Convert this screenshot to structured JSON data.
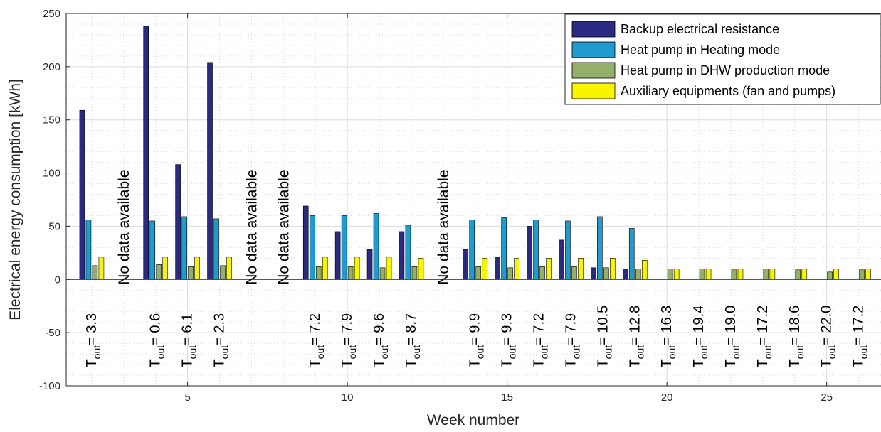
{
  "chart_data": {
    "type": "bar",
    "xlabel": "Week number",
    "ylabel": "Electrical energy consumption [kWh]",
    "xlim": [
      1.2,
      26.7
    ],
    "ylim": [
      -100,
      250
    ],
    "xticks": [
      5,
      10,
      15,
      20,
      25
    ],
    "xtick_labels": [
      "5",
      "10",
      "15",
      "20",
      "25"
    ],
    "yticks": [
      -100,
      -50,
      0,
      50,
      100,
      150,
      200,
      250
    ],
    "ytick_labels": [
      "-100",
      "-50",
      "0",
      "50",
      "100",
      "150",
      "200",
      "250"
    ],
    "grid": true,
    "minor_grid": true,
    "legend_position": "top-right",
    "categories": [
      2,
      3,
      4,
      5,
      6,
      7,
      8,
      9,
      10,
      11,
      12,
      13,
      14,
      15,
      16,
      17,
      18,
      19,
      20,
      21,
      22,
      23,
      24,
      25,
      26
    ],
    "series": [
      {
        "name": "Backup electrical resistance",
        "color": "#2b2a82",
        "values": [
          159,
          null,
          238,
          108,
          204,
          null,
          null,
          69,
          45,
          28,
          45,
          null,
          28,
          21,
          50,
          37,
          11,
          10,
          0,
          0,
          0,
          0,
          0,
          0,
          0
        ]
      },
      {
        "name": "Heat pump in Heating mode",
        "color": "#1f9bd0",
        "values": [
          56,
          null,
          55,
          59,
          57,
          null,
          null,
          60,
          60,
          62,
          51,
          null,
          56,
          58,
          56,
          55,
          59,
          48,
          0,
          0,
          0,
          0,
          0,
          0,
          0
        ]
      },
      {
        "name": "Heat pump in DHW production mode",
        "color": "#94af6a",
        "values": [
          13,
          null,
          14,
          12,
          13,
          null,
          null,
          12,
          12,
          11,
          12,
          null,
          12,
          11,
          12,
          12,
          11,
          10,
          10,
          10,
          9,
          10,
          9,
          7,
          9
        ]
      },
      {
        "name": "Auxiliary equipments (fan and pumps)",
        "color": "#f9f400",
        "values": [
          21,
          null,
          21,
          21,
          21,
          null,
          null,
          21,
          21,
          21,
          20,
          null,
          20,
          20,
          20,
          20,
          20,
          18,
          10,
          10,
          10,
          10,
          10,
          10,
          10
        ]
      }
    ],
    "no_data_label": "No data available",
    "no_data_weeks": [
      3,
      7,
      8,
      13
    ],
    "tout_prefix": "T",
    "tout_subscript": "out",
    "tout_equals": "= ",
    "tout": [
      {
        "week": 2,
        "value": "3.3"
      },
      {
        "week": 4,
        "value": "0.6"
      },
      {
        "week": 5,
        "value": "6.1"
      },
      {
        "week": 6,
        "value": "2.3"
      },
      {
        "week": 9,
        "value": "7.2"
      },
      {
        "week": 10,
        "value": "7.9"
      },
      {
        "week": 11,
        "value": "9.6"
      },
      {
        "week": 12,
        "value": "8.7"
      },
      {
        "week": 14,
        "value": "9.9"
      },
      {
        "week": 15,
        "value": "9.3"
      },
      {
        "week": 16,
        "value": "7.2"
      },
      {
        "week": 17,
        "value": "7.9"
      },
      {
        "week": 18,
        "value": "10.5"
      },
      {
        "week": 19,
        "value": "12.8"
      },
      {
        "week": 20,
        "value": "16.3"
      },
      {
        "week": 21,
        "value": "19.4"
      },
      {
        "week": 22,
        "value": "19.0"
      },
      {
        "week": 23,
        "value": "17.2"
      },
      {
        "week": 24,
        "value": "18.6"
      },
      {
        "week": 25,
        "value": "22.0"
      },
      {
        "week": 26,
        "value": "17.2"
      }
    ]
  }
}
